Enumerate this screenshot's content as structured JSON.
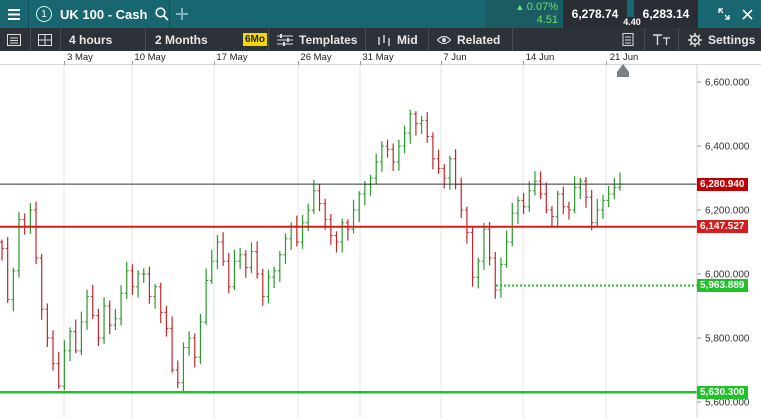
{
  "topbar": {
    "title": "UK 100 - Cash",
    "tab_number": "1",
    "change_pct": "0.07%",
    "change_points": "4.51",
    "sell_price": "6,278.74",
    "buy_price": "6,283.14",
    "spread": "4.40"
  },
  "toolbar": {
    "interval": "4 hours",
    "range": "2 Months",
    "badge": "6Mo",
    "templates": "Templates",
    "price_mode": "Mid",
    "related": "Related",
    "settings": "Settings"
  },
  "colors": {
    "topbar": "#176670",
    "toolbar": "#2d3138",
    "up": "#2a9a2a",
    "down": "#c0282d",
    "red_line": "#d71c1c",
    "green_line": "#21c12a",
    "price_tag": "#c00000"
  },
  "chart_data": {
    "type": "ohlc",
    "x_labels": [
      "3 May",
      "10 May",
      "17 May",
      "26 May",
      "31 May",
      "7 Jun",
      "14 Jun",
      "21 Jun"
    ],
    "y_ticks": [
      "6,600.000",
      "6,400.000",
      "6,200.000",
      "6,000.000",
      "5,800.000",
      "5,600.000"
    ],
    "ylim": [
      5600,
      6640
    ],
    "horizontal_lines": [
      {
        "label": "6,280.940",
        "value": 6280.94,
        "style": "current"
      },
      {
        "label": "6,147.527",
        "value": 6147.527,
        "style": "red"
      },
      {
        "label": "5,963.889",
        "value": 5963.889,
        "style": "green-dotted"
      },
      {
        "label": "5,630.300",
        "value": 5630.3,
        "style": "green"
      }
    ],
    "close_path": [
      6080,
      5920,
      6010,
      6170,
      6150,
      6200,
      6050,
      5890,
      5800,
      5720,
      5650,
      5760,
      5820,
      5760,
      5850,
      5930,
      5870,
      5800,
      5900,
      5840,
      5860,
      5940,
      6010,
      5960,
      6000,
      6000,
      5930,
      5960,
      5880,
      5830,
      5700,
      5660,
      5770,
      5800,
      5740,
      5850,
      5980,
      6040,
      6100,
      6040,
      5960,
      6040,
      6060,
      6020,
      6070,
      6000,
      5930,
      5990,
      6010,
      6060,
      6110,
      6150,
      6100,
      6160,
      6200,
      6260,
      6220,
      6170,
      6120,
      6100,
      6160,
      6140,
      6200,
      6250,
      6280,
      6300,
      6350,
      6400,
      6390,
      6350,
      6400,
      6440,
      6500,
      6470,
      6480,
      6430,
      6360,
      6330,
      6300,
      6360,
      6280,
      6200,
      6130,
      5990,
      6040,
      6140,
      6050,
      5950,
      6030,
      6100,
      6190,
      6230,
      6210,
      6260,
      6290,
      6250,
      6200,
      6180,
      6250,
      6210,
      6200,
      6270,
      6290,
      6240,
      6160,
      6200,
      6230,
      6250,
      6270,
      6281
    ]
  }
}
